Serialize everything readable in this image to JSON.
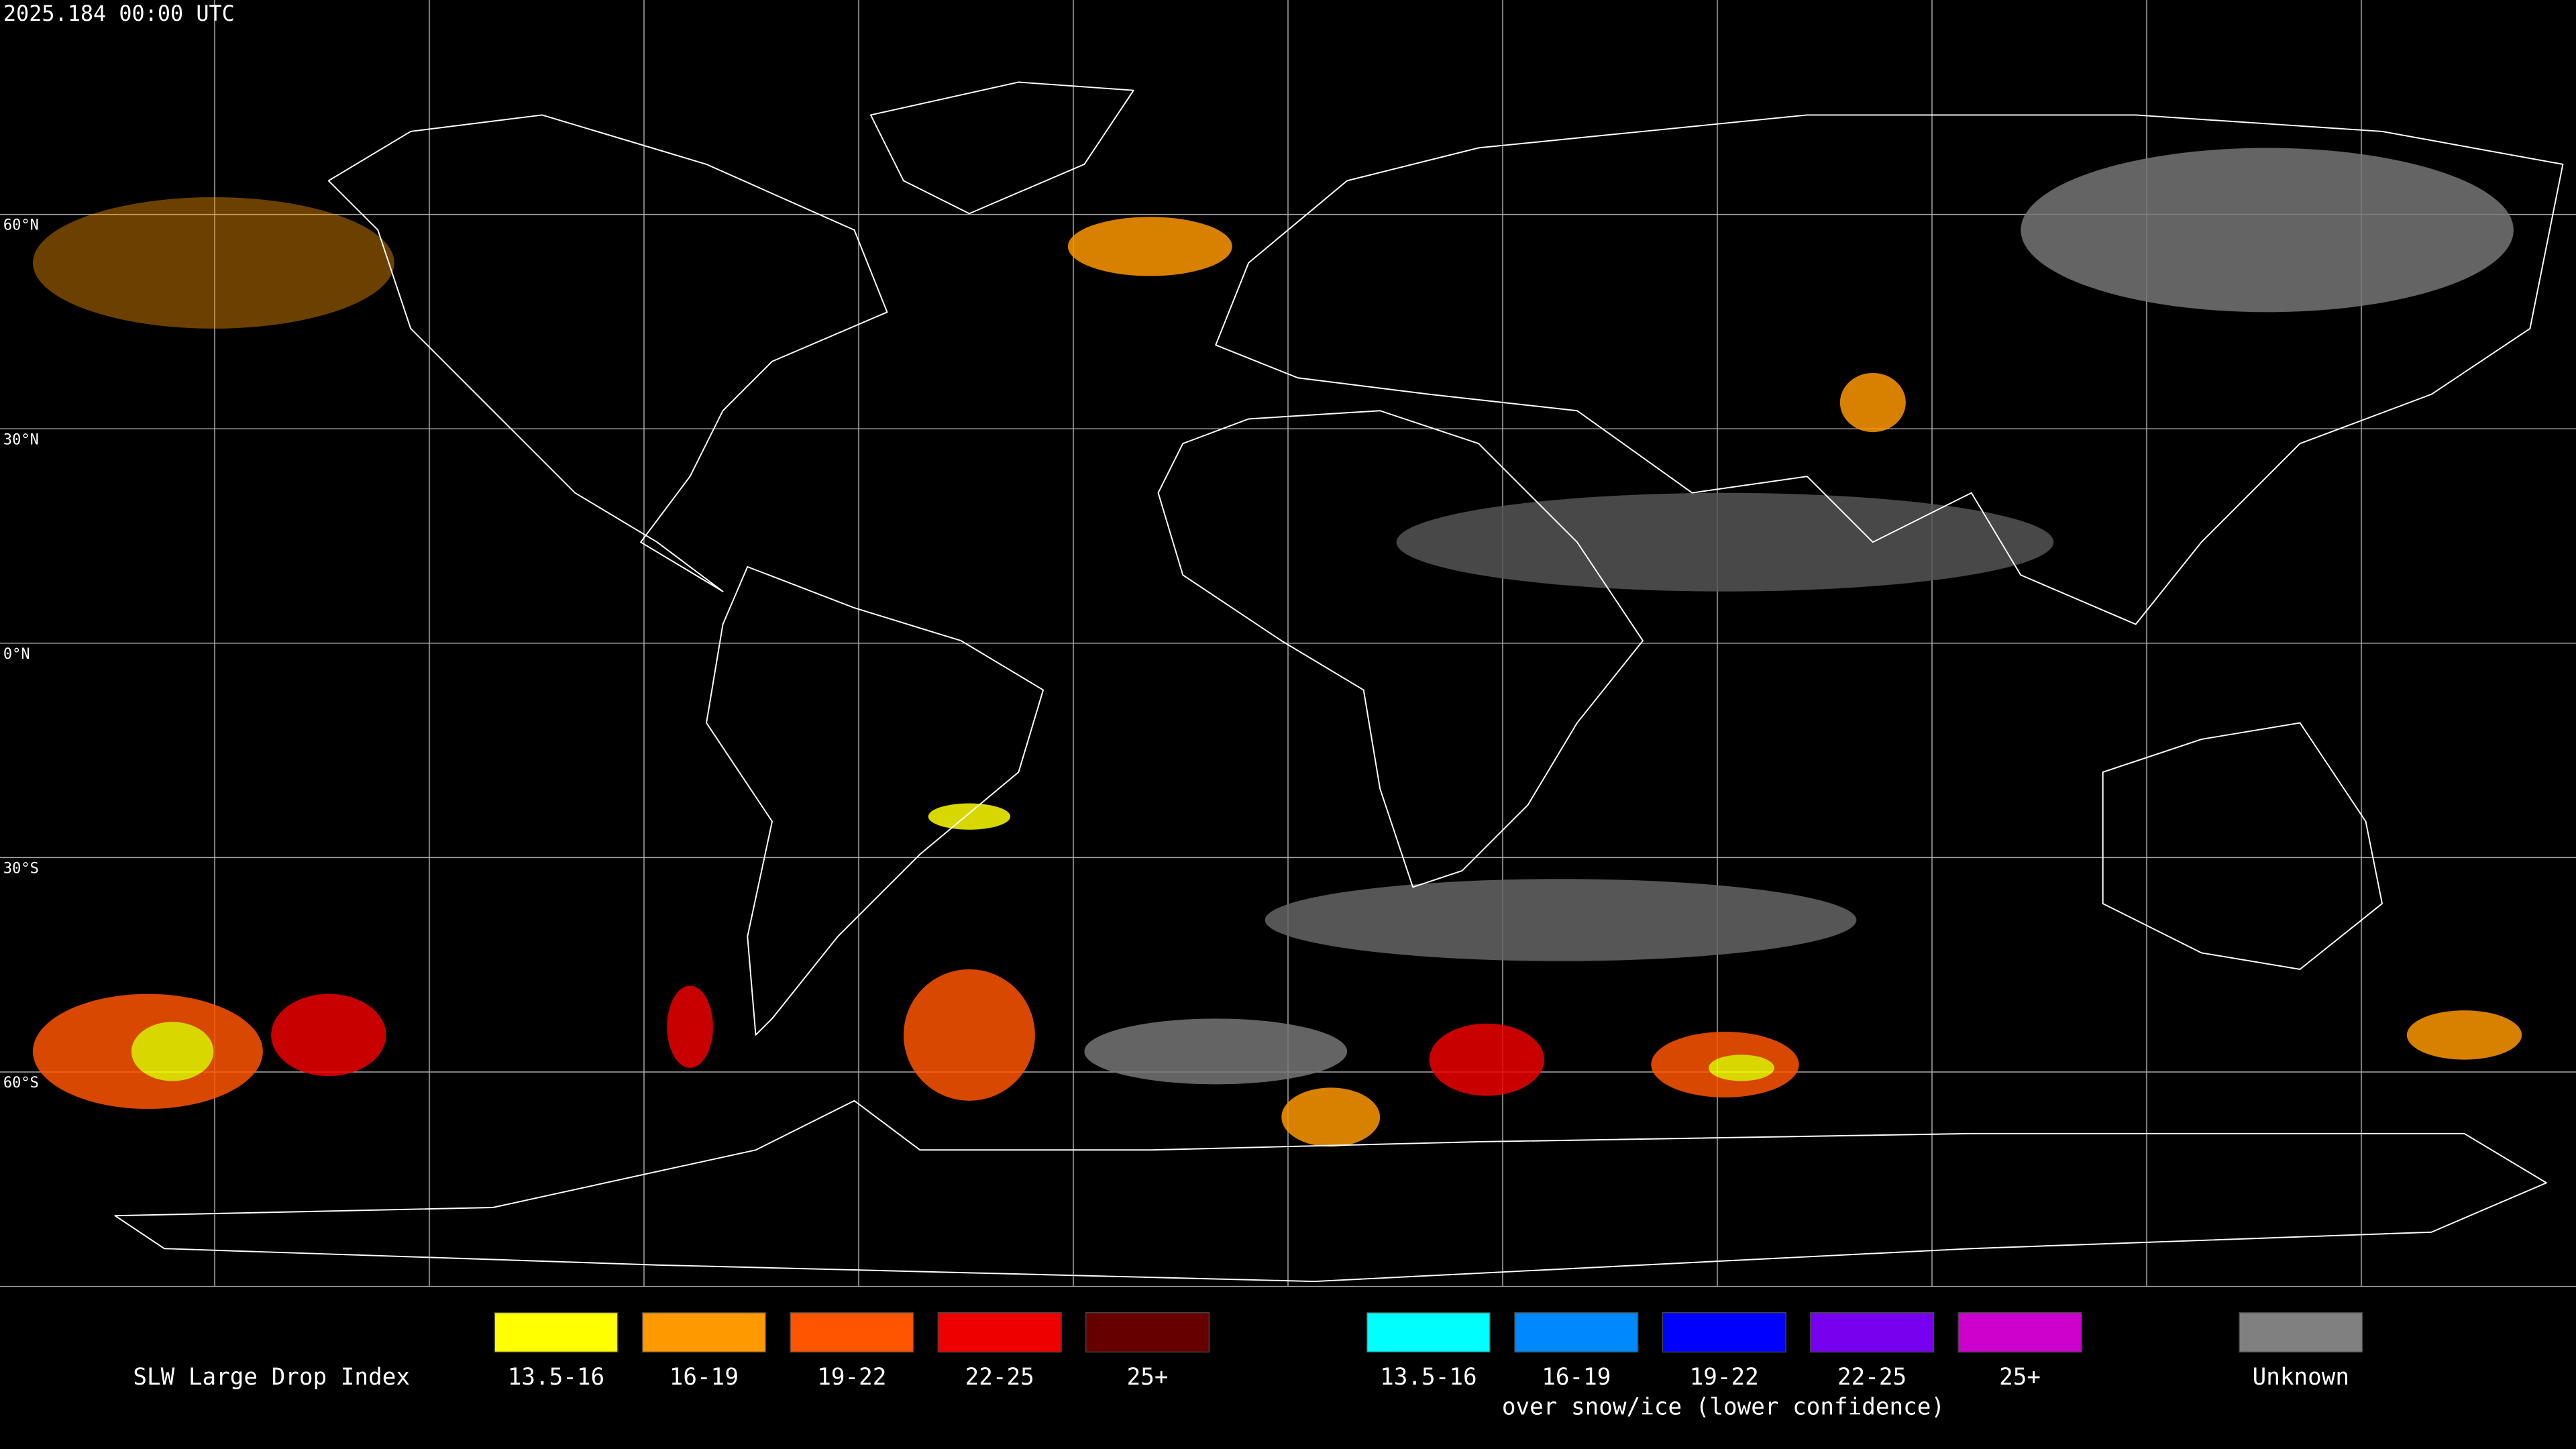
{
  "header": {
    "timestamp": "2025.184 00:00 UTC"
  },
  "map": {
    "latitude_labels": [
      "60°N",
      "30°N",
      "0°N",
      "30°S",
      "60°S"
    ]
  },
  "legend": {
    "title": "SLW Large Drop Index",
    "standard": [
      {
        "label": "13.5-16",
        "color": "#ffff00"
      },
      {
        "label": "16-19",
        "color": "#ff9900"
      },
      {
        "label": "19-22",
        "color": "#ff5500"
      },
      {
        "label": "22-25",
        "color": "#ee0000"
      },
      {
        "label": "25+",
        "color": "#660000"
      }
    ],
    "snow_ice": [
      {
        "label": "13.5-16",
        "color": "#00ffff"
      },
      {
        "label": "16-19",
        "color": "#0088ff"
      },
      {
        "label": "19-22",
        "color": "#0000ff"
      },
      {
        "label": "22-25",
        "color": "#7700ee"
      },
      {
        "label": "25+",
        "color": "#cc00cc"
      }
    ],
    "snow_ice_caption": "over snow/ice (lower confidence)",
    "unknown": {
      "label": "Unknown",
      "color": "#808080"
    }
  }
}
